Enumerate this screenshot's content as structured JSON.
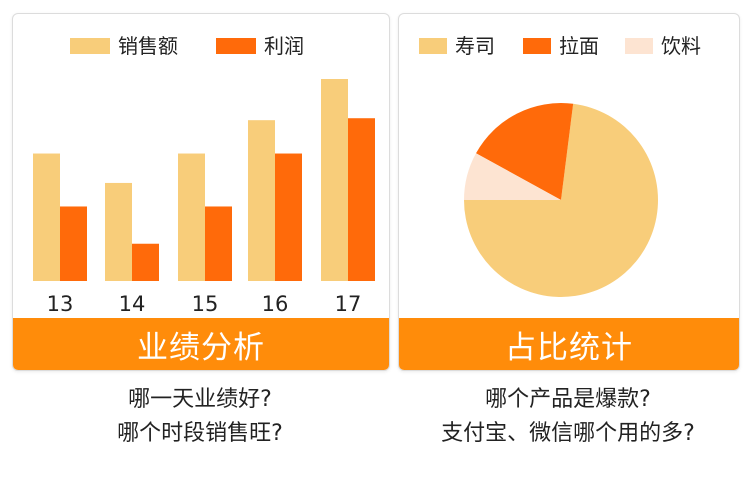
{
  "colors": {
    "light": "#f8cd7a",
    "dark": "#ff6a0a",
    "pale": "#fde4d2",
    "banner": "#ff8c0a"
  },
  "left_panel": {
    "banner": "业绩分析",
    "caption": [
      "哪一天业绩好?",
      "哪个时段销售旺?"
    ]
  },
  "right_panel": {
    "banner": "占比统计",
    "caption": [
      "哪个产品是爆款?",
      "支付宝、微信哪个用的多?"
    ]
  },
  "chart_data": [
    {
      "type": "bar",
      "categories": [
        "13",
        "14",
        "15",
        "16",
        "17"
      ],
      "series": [
        {
          "name": "销售额",
          "color": "#f8cd7a",
          "values": [
            65,
            50,
            65,
            82,
            103
          ]
        },
        {
          "name": "利润",
          "color": "#ff6a0a",
          "values": [
            38,
            19,
            38,
            65,
            83
          ]
        }
      ],
      "legend_position": "top-center",
      "ylim": [
        0,
        103
      ],
      "grid": false
    },
    {
      "type": "pie",
      "labels": [
        "寿司",
        "拉面",
        "饮料"
      ],
      "values": [
        73,
        19,
        8
      ],
      "colors": [
        "#f8cd7a",
        "#ff6a0a",
        "#fde4d2"
      ],
      "legend_position": "top-center"
    }
  ]
}
